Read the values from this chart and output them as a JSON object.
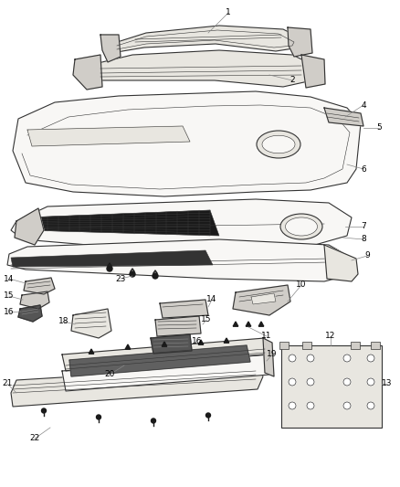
{
  "background_color": "#ffffff",
  "fig_width": 4.38,
  "fig_height": 5.33,
  "dpi": 100,
  "line_color": "#333333",
  "label_color": "#000000",
  "label_fontsize": 6.5,
  "lw_main": 0.8,
  "lw_thin": 0.4
}
